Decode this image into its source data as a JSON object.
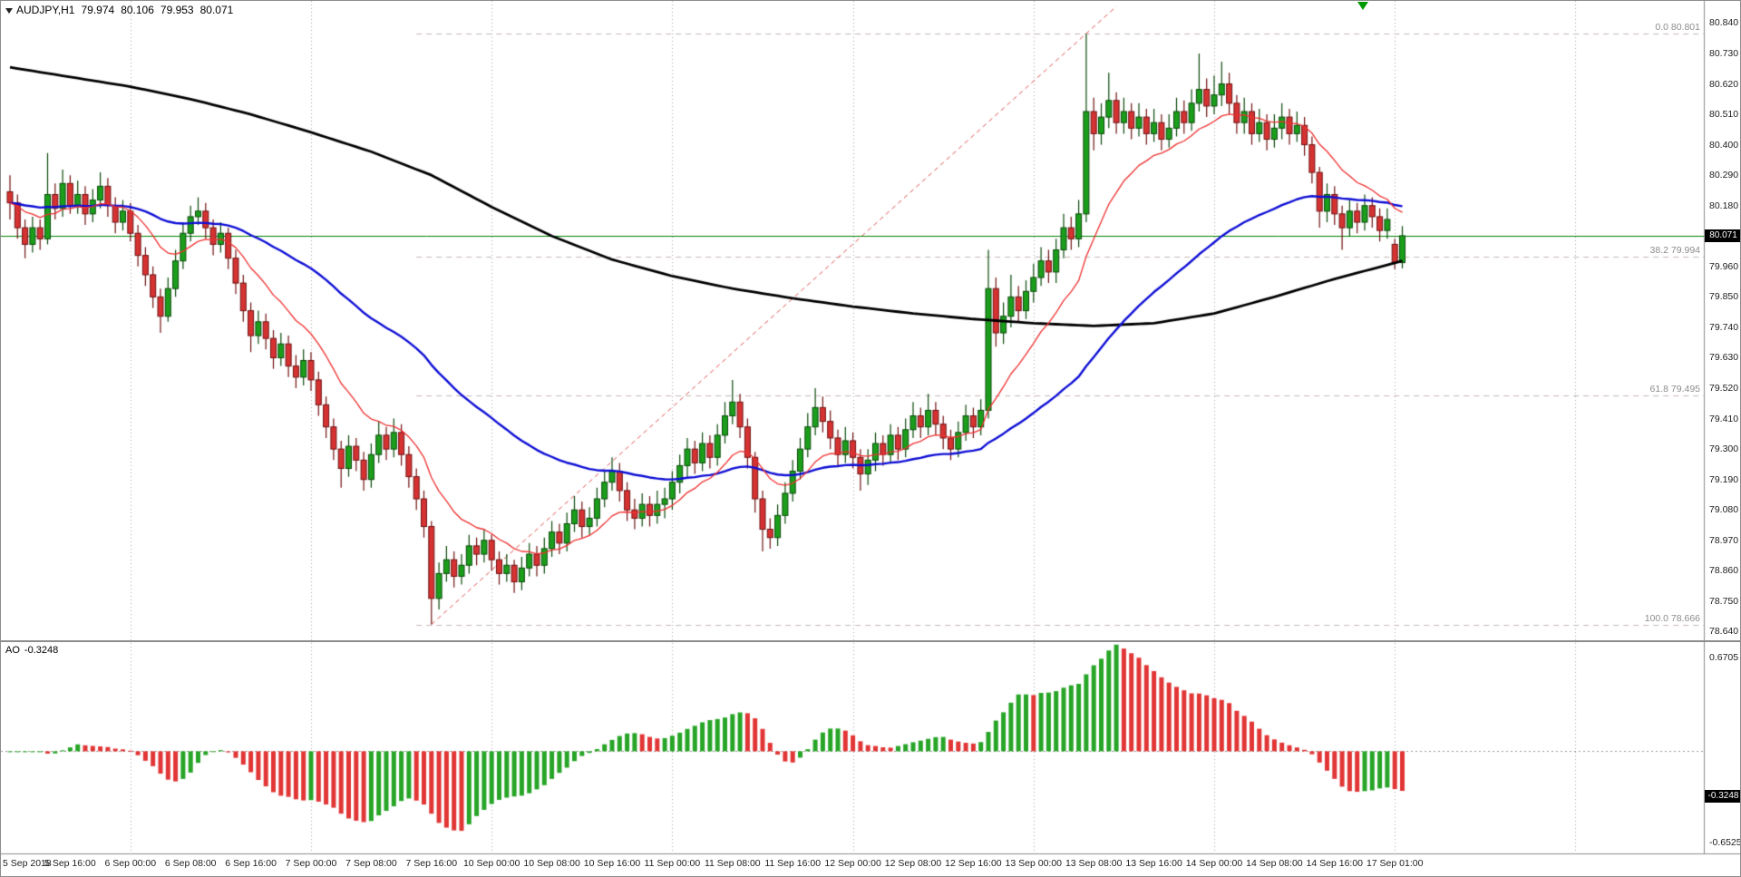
{
  "header": {
    "symbol": "AUDJPY,H1",
    "open": "79.974",
    "high": "80.106",
    "low": "79.953",
    "close": "80.071"
  },
  "indicator": {
    "name": "AO",
    "value": "-0.3248",
    "axis_max": "0.6705",
    "axis_min": "-0.6525",
    "ylim": [
      -0.7303,
      0.7808
    ],
    "full_name": "Awesome Oscillator",
    "derived": "sma5(median)-sma34(median)"
  },
  "price_axis": {
    "labels": [
      "80.840",
      "80.730",
      "80.620",
      "80.510",
      "80.400",
      "80.290",
      "80.180",
      "79.960",
      "79.850",
      "79.740",
      "79.630",
      "79.520",
      "79.410",
      "79.300",
      "79.190",
      "79.080",
      "78.970",
      "78.860",
      "78.750",
      "78.640"
    ]
  },
  "time_axis": {
    "bars_per_label": 8,
    "labels": [
      "5 Sep 2018",
      "5 Sep 16:00",
      "6 Sep 00:00",
      "6 Sep 08:00",
      "6 Sep 16:00",
      "7 Sep 00:00",
      "7 Sep 08:00",
      "7 Sep 16:00",
      "10 Sep 00:00",
      "10 Sep 08:00",
      "10 Sep 16:00",
      "11 Sep 00:00",
      "11 Sep 08:00",
      "11 Sep 16:00",
      "12 Sep 00:00",
      "12 Sep 08:00",
      "12 Sep 16:00",
      "13 Sep 00:00",
      "13 Sep 08:00",
      "13 Sep 16:00",
      "14 Sep 00:00",
      "14 Sep 08:00",
      "14 Sep 16:00",
      "17 Sep 01:00"
    ]
  },
  "colors": {
    "background": "#ffffff",
    "frame": "#8c8c8c",
    "grid": "#a8a8a8",
    "bull": "#1b9e1b",
    "bear": "#d63232",
    "bull_border": "#0a4a0a",
    "bear_border": "#701212",
    "ma_fast": "#f03030",
    "ma_medium": "#0f0fd6",
    "ma_slow": "#000000",
    "fib_line": "#c9b8b8",
    "fib_text": "#8c8c8c",
    "hline": "#008200",
    "trendline": "#e05050",
    "ao_up": "#27a527",
    "ao_down": "#e23636",
    "badge_bg": "#000000",
    "badge_text": "#ffffff",
    "arrow_marker": "#009900"
  },
  "chart_data": {
    "type": "candlestick",
    "title": "AUDJPY,H1",
    "symbol": "AUDJPY",
    "timeframe": "H1",
    "ylim": [
      78.6185,
      80.92
    ],
    "grid": "day-separators-only",
    "legend_position": "none",
    "day_separator_indices": [
      16,
      40,
      64,
      88,
      112,
      136,
      160,
      184,
      208
    ],
    "overlays": {
      "horizontal_line": {
        "price": 80.071,
        "color": "#008200"
      },
      "trendline": {
        "from": [
          56,
          78.666
        ],
        "to": [
          147,
          80.9
        ],
        "color": "#e05050",
        "dash": [
          5,
          4
        ]
      },
      "fibonacci": {
        "start_index": 54,
        "levels": [
          {
            "label": "0.0 80.801",
            "price": 80.801
          },
          {
            "label": "38.2 79.994",
            "price": 79.994
          },
          {
            "label": "61.8 79.495",
            "price": 79.495
          },
          {
            "label": "100.0 78.666",
            "price": 78.666
          }
        ]
      },
      "moving_averages": [
        {
          "name": "ma-slow",
          "color": "#000000",
          "width": 2.8,
          "type": "keypoints",
          "keypoints": [
            [
              0,
              80.68
            ],
            [
              8,
              80.645
            ],
            [
              16,
              80.61
            ],
            [
              24,
              80.565
            ],
            [
              32,
              80.51
            ],
            [
              40,
              80.445
            ],
            [
              48,
              80.375
            ],
            [
              56,
              80.29
            ],
            [
              64,
              80.175
            ],
            [
              72,
              80.07
            ],
            [
              80,
              79.985
            ],
            [
              88,
              79.925
            ],
            [
              96,
              79.88
            ],
            [
              104,
              79.845
            ],
            [
              112,
              79.815
            ],
            [
              120,
              79.79
            ],
            [
              128,
              79.77
            ],
            [
              136,
              79.755
            ],
            [
              144,
              79.745
            ],
            [
              152,
              79.755
            ],
            [
              160,
              79.79
            ],
            [
              168,
              79.85
            ],
            [
              176,
              79.915
            ],
            [
              185,
              79.98
            ]
          ]
        },
        {
          "name": "ma-medium",
          "color": "#0f0fd6",
          "width": 2.4,
          "type": "ema",
          "period": 50
        },
        {
          "name": "ma-fast",
          "color": "#f03030",
          "width": 1.3,
          "type": "ema",
          "period": 13
        }
      ],
      "arrow_marker": {
        "x": 1496,
        "y": 1,
        "direction": "down",
        "color": "#009900"
      }
    },
    "ohlc": [
      [
        80.23,
        80.29,
        80.13,
        80.19
      ],
      [
        80.19,
        80.22,
        80.06,
        80.1
      ],
      [
        80.1,
        80.13,
        79.99,
        80.04
      ],
      [
        80.04,
        80.14,
        80.01,
        80.1
      ],
      [
        80.1,
        80.13,
        80.02,
        80.06
      ],
      [
        80.06,
        80.37,
        80.04,
        80.22
      ],
      [
        80.22,
        80.26,
        80.13,
        80.17
      ],
      [
        80.17,
        80.31,
        80.14,
        80.26
      ],
      [
        80.26,
        80.29,
        80.15,
        80.18
      ],
      [
        80.18,
        80.27,
        80.15,
        80.22
      ],
      [
        80.22,
        80.25,
        80.11,
        80.15
      ],
      [
        80.15,
        80.24,
        80.12,
        80.2
      ],
      [
        80.2,
        80.3,
        80.17,
        80.25
      ],
      [
        80.25,
        80.28,
        80.14,
        80.18
      ],
      [
        80.18,
        80.21,
        80.08,
        80.12
      ],
      [
        80.12,
        80.2,
        80.09,
        80.16
      ],
      [
        80.16,
        80.19,
        80.05,
        80.08
      ],
      [
        80.08,
        80.11,
        79.96,
        80.0
      ],
      [
        80.0,
        80.03,
        79.89,
        79.93
      ],
      [
        79.93,
        79.96,
        79.81,
        79.85
      ],
      [
        79.85,
        79.88,
        79.72,
        79.78
      ],
      [
        79.78,
        79.92,
        79.76,
        79.88
      ],
      [
        79.88,
        80.02,
        79.85,
        79.98
      ],
      [
        79.98,
        80.12,
        79.95,
        80.08
      ],
      [
        80.08,
        80.18,
        80.05,
        80.14
      ],
      [
        80.14,
        80.21,
        80.11,
        80.16
      ],
      [
        80.16,
        80.19,
        80.06,
        80.1
      ],
      [
        80.1,
        80.13,
        80.0,
        80.04
      ],
      [
        80.04,
        80.12,
        80.01,
        80.08
      ],
      [
        80.08,
        80.1,
        79.95,
        79.99
      ],
      [
        79.99,
        80.02,
        79.86,
        79.9
      ],
      [
        79.9,
        79.93,
        79.76,
        79.8
      ],
      [
        79.8,
        79.83,
        79.65,
        79.71
      ],
      [
        79.71,
        79.8,
        79.68,
        79.76
      ],
      [
        79.76,
        79.79,
        79.66,
        79.7
      ],
      [
        79.7,
        79.73,
        79.59,
        79.63
      ],
      [
        79.63,
        79.72,
        79.6,
        79.68
      ],
      [
        79.68,
        79.71,
        79.56,
        79.6
      ],
      [
        79.6,
        79.64,
        79.52,
        79.56
      ],
      [
        79.56,
        79.66,
        79.53,
        79.62
      ],
      [
        79.62,
        79.65,
        79.51,
        79.55
      ],
      [
        79.55,
        79.58,
        79.42,
        79.46
      ],
      [
        79.46,
        79.49,
        79.34,
        79.38
      ],
      [
        79.38,
        79.41,
        79.26,
        79.3
      ],
      [
        79.3,
        79.33,
        79.16,
        79.23
      ],
      [
        79.23,
        79.35,
        79.2,
        79.31
      ],
      [
        79.31,
        79.34,
        79.22,
        79.26
      ],
      [
        79.26,
        79.29,
        79.15,
        79.19
      ],
      [
        79.19,
        79.32,
        79.16,
        79.28
      ],
      [
        79.28,
        79.4,
        79.25,
        79.35
      ],
      [
        79.35,
        79.38,
        79.26,
        79.3
      ],
      [
        79.3,
        79.41,
        79.27,
        79.36
      ],
      [
        79.36,
        79.39,
        79.24,
        79.28
      ],
      [
        79.28,
        79.31,
        79.16,
        79.2
      ],
      [
        79.2,
        79.23,
        79.08,
        79.12
      ],
      [
        79.12,
        79.15,
        78.98,
        79.02
      ],
      [
        79.02,
        79.04,
        78.666,
        78.76
      ],
      [
        78.76,
        78.89,
        78.72,
        78.85
      ],
      [
        78.85,
        78.95,
        78.82,
        78.9
      ],
      [
        78.9,
        78.93,
        78.8,
        78.84
      ],
      [
        78.84,
        78.92,
        78.81,
        78.88
      ],
      [
        78.88,
        78.99,
        78.85,
        78.95
      ],
      [
        78.95,
        78.98,
        78.88,
        78.92
      ],
      [
        78.92,
        79.01,
        78.89,
        78.97
      ],
      [
        78.97,
        78.99,
        78.86,
        78.9
      ],
      [
        78.9,
        78.93,
        78.81,
        78.85
      ],
      [
        78.85,
        78.92,
        78.82,
        78.88
      ],
      [
        78.88,
        78.9,
        78.78,
        78.82
      ],
      [
        78.82,
        78.91,
        78.79,
        78.87
      ],
      [
        78.87,
        78.96,
        78.84,
        78.92
      ],
      [
        78.92,
        78.95,
        78.84,
        78.88
      ],
      [
        78.88,
        78.98,
        78.85,
        78.94
      ],
      [
        78.94,
        79.04,
        78.91,
        79.0
      ],
      [
        79.0,
        79.03,
        78.92,
        78.96
      ],
      [
        78.96,
        79.07,
        78.93,
        79.03
      ],
      [
        79.03,
        79.13,
        79.0,
        79.08
      ],
      [
        79.08,
        79.11,
        78.98,
        79.02
      ],
      [
        79.02,
        79.09,
        78.99,
        79.05
      ],
      [
        79.05,
        79.16,
        79.02,
        79.12
      ],
      [
        79.12,
        79.22,
        79.09,
        79.18
      ],
      [
        79.18,
        79.27,
        79.15,
        79.22
      ],
      [
        79.22,
        79.25,
        79.11,
        79.15
      ],
      [
        79.15,
        79.18,
        79.04,
        79.08
      ],
      [
        79.08,
        79.12,
        79.01,
        79.05
      ],
      [
        79.05,
        79.14,
        79.02,
        79.1
      ],
      [
        79.1,
        79.13,
        79.02,
        79.06
      ],
      [
        79.06,
        79.15,
        79.03,
        79.1
      ],
      [
        79.1,
        79.16,
        79.05,
        79.12
      ],
      [
        79.12,
        79.22,
        79.08,
        79.18
      ],
      [
        79.18,
        79.28,
        79.14,
        79.24
      ],
      [
        79.24,
        79.34,
        79.2,
        79.3
      ],
      [
        79.3,
        79.33,
        79.21,
        79.25
      ],
      [
        79.25,
        79.36,
        79.22,
        79.32
      ],
      [
        79.32,
        79.35,
        79.23,
        79.27
      ],
      [
        79.27,
        79.39,
        79.24,
        79.35
      ],
      [
        79.35,
        79.47,
        79.32,
        79.42
      ],
      [
        79.42,
        79.55,
        79.39,
        79.47
      ],
      [
        79.47,
        79.5,
        79.34,
        79.38
      ],
      [
        79.38,
        79.41,
        79.23,
        79.27
      ],
      [
        79.27,
        79.29,
        79.07,
        79.12
      ],
      [
        79.12,
        79.15,
        78.93,
        79.01
      ],
      [
        79.01,
        79.05,
        78.94,
        78.98
      ],
      [
        78.98,
        79.1,
        78.95,
        79.06
      ],
      [
        79.06,
        79.18,
        79.03,
        79.14
      ],
      [
        79.14,
        79.26,
        79.11,
        79.22
      ],
      [
        79.22,
        79.34,
        79.19,
        79.3
      ],
      [
        79.3,
        79.43,
        79.27,
        79.38
      ],
      [
        79.38,
        79.52,
        79.35,
        79.45
      ],
      [
        79.45,
        79.49,
        79.36,
        79.4
      ],
      [
        79.4,
        79.44,
        79.3,
        79.34
      ],
      [
        79.34,
        79.37,
        79.24,
        79.28
      ],
      [
        79.28,
        79.38,
        79.25,
        79.33
      ],
      [
        79.33,
        79.36,
        79.23,
        79.27
      ],
      [
        79.27,
        79.3,
        79.15,
        79.21
      ],
      [
        79.21,
        79.3,
        79.17,
        79.26
      ],
      [
        79.26,
        79.36,
        79.22,
        79.32
      ],
      [
        79.32,
        79.35,
        79.24,
        79.28
      ],
      [
        79.28,
        79.39,
        79.25,
        79.35
      ],
      [
        79.35,
        79.38,
        79.26,
        79.3
      ],
      [
        79.3,
        79.41,
        79.27,
        79.37
      ],
      [
        79.37,
        79.47,
        79.34,
        79.42
      ],
      [
        79.42,
        79.45,
        79.34,
        79.38
      ],
      [
        79.38,
        79.5,
        79.35,
        79.44
      ],
      [
        79.44,
        79.47,
        79.35,
        79.39
      ],
      [
        79.39,
        79.42,
        79.3,
        79.34
      ],
      [
        79.34,
        79.37,
        79.26,
        79.3
      ],
      [
        79.3,
        79.4,
        79.27,
        79.36
      ],
      [
        79.36,
        79.46,
        79.33,
        79.42
      ],
      [
        79.42,
        79.45,
        79.34,
        79.38
      ],
      [
        79.38,
        79.48,
        79.35,
        79.44
      ],
      [
        79.44,
        80.02,
        79.41,
        79.88
      ],
      [
        79.88,
        79.92,
        79.67,
        79.72
      ],
      [
        79.72,
        79.83,
        79.68,
        79.78
      ],
      [
        79.78,
        79.93,
        79.74,
        79.85
      ],
      [
        79.85,
        79.89,
        79.76,
        79.8
      ],
      [
        79.8,
        79.91,
        79.77,
        79.87
      ],
      [
        79.87,
        79.97,
        79.83,
        79.92
      ],
      [
        79.92,
        80.03,
        79.89,
        79.98
      ],
      [
        79.98,
        80.02,
        79.9,
        79.94
      ],
      [
        79.94,
        80.06,
        79.9,
        80.02
      ],
      [
        80.02,
        80.15,
        79.99,
        80.1
      ],
      [
        80.1,
        80.14,
        80.02,
        80.06
      ],
      [
        80.06,
        80.2,
        80.03,
        80.15
      ],
      [
        80.15,
        80.801,
        80.12,
        80.52
      ],
      [
        80.52,
        80.57,
        80.38,
        80.44
      ],
      [
        80.44,
        80.55,
        80.4,
        80.5
      ],
      [
        80.5,
        80.66,
        80.46,
        80.56
      ],
      [
        80.56,
        80.59,
        80.44,
        80.48
      ],
      [
        80.48,
        80.57,
        80.44,
        80.52
      ],
      [
        80.52,
        80.55,
        80.42,
        80.46
      ],
      [
        80.46,
        80.55,
        80.43,
        80.5
      ],
      [
        80.5,
        80.53,
        80.4,
        80.44
      ],
      [
        80.44,
        80.53,
        80.41,
        80.48
      ],
      [
        80.48,
        80.51,
        80.38,
        80.42
      ],
      [
        80.42,
        80.51,
        80.39,
        80.46
      ],
      [
        80.46,
        80.57,
        80.43,
        80.52
      ],
      [
        80.52,
        80.56,
        80.44,
        80.48
      ],
      [
        80.48,
        80.6,
        80.45,
        80.55
      ],
      [
        80.55,
        80.73,
        80.52,
        80.6
      ],
      [
        80.6,
        80.64,
        80.5,
        80.54
      ],
      [
        80.54,
        80.65,
        80.51,
        80.58
      ],
      [
        80.58,
        80.7,
        80.54,
        80.62
      ],
      [
        80.62,
        80.66,
        80.51,
        80.55
      ],
      [
        80.55,
        80.58,
        80.44,
        80.48
      ],
      [
        80.48,
        80.57,
        80.44,
        80.52
      ],
      [
        80.52,
        80.55,
        80.4,
        80.44
      ],
      [
        80.44,
        80.53,
        80.41,
        80.48
      ],
      [
        80.48,
        80.51,
        80.38,
        80.42
      ],
      [
        80.42,
        80.51,
        80.39,
        80.46
      ],
      [
        80.46,
        80.55,
        80.42,
        80.5
      ],
      [
        80.5,
        80.53,
        80.4,
        80.44
      ],
      [
        80.44,
        80.52,
        80.41,
        80.47
      ],
      [
        80.47,
        80.5,
        80.36,
        80.4
      ],
      [
        80.4,
        80.43,
        80.26,
        80.3
      ],
      [
        80.3,
        80.32,
        80.1,
        80.16
      ],
      [
        80.16,
        80.26,
        80.12,
        80.22
      ],
      [
        80.22,
        80.25,
        80.11,
        80.15
      ],
      [
        80.15,
        80.18,
        80.02,
        80.1
      ],
      [
        80.1,
        80.2,
        80.07,
        80.16
      ],
      [
        80.16,
        80.19,
        80.08,
        80.12
      ],
      [
        80.12,
        80.22,
        80.09,
        80.18
      ],
      [
        80.18,
        80.21,
        80.1,
        80.14
      ],
      [
        80.14,
        80.17,
        80.05,
        80.09
      ],
      [
        80.09,
        80.17,
        80.06,
        80.13
      ],
      [
        80.04,
        80.06,
        79.95,
        79.974
      ],
      [
        79.974,
        80.106,
        79.953,
        80.071
      ]
    ]
  }
}
